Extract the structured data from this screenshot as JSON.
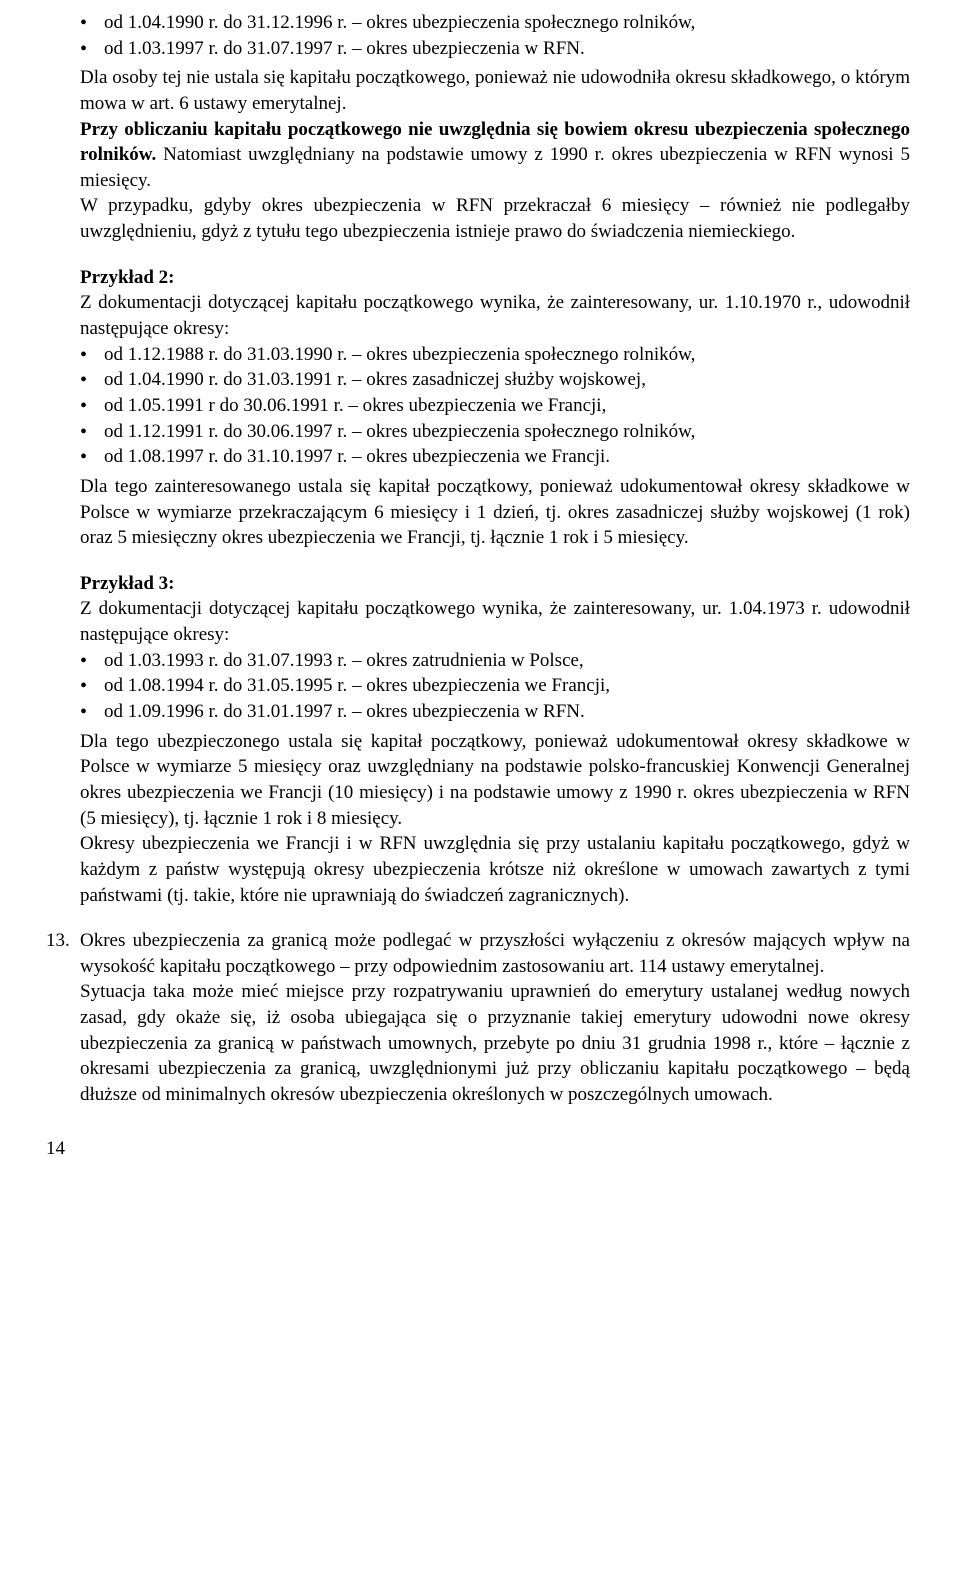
{
  "block1": {
    "bullets": [
      "od 1.04.1990 r. do 31.12.1996 r. – okres ubezpieczenia społecznego rolników,",
      "od 1.03.1997 r. do 31.07.1997 r. – okres ubezpieczenia w RFN."
    ],
    "p1": "Dla osoby tej nie ustala się kapitału początkowego, ponieważ nie udowodniła okresu składkowego, o którym mowa w art. 6 ustawy emerytalnej.",
    "p2a": "Przy obliczaniu kapitału początkowego nie uwzględnia się bowiem okresu ubezpieczenia społecznego rolników.",
    "p2b": " Natomiast uwzględniany na podstawie umowy z 1990 r. okres ubezpieczenia w RFN wynosi 5 miesięcy.",
    "p3": "W przypadku, gdyby okres ubezpieczenia w RFN przekraczał 6 miesięcy – również nie podlegałby uwzględnieniu, gdyż z tytułu tego ubezpieczenia istnieje prawo do świadczenia niemieckiego."
  },
  "block2": {
    "heading": "Przykład 2:",
    "intro": "Z dokumentacji dotyczącej kapitału początkowego wynika, że zainteresowany, ur. 1.10.1970 r., udowodnił następujące okresy:",
    "bullets": [
      "od 1.12.1988 r. do 31.03.1990 r. – okres ubezpieczenia społecznego rolników,",
      "od 1.04.1990 r. do 31.03.1991 r. – okres zasadniczej służby wojskowej,",
      "od 1.05.1991 r do 30.06.1991 r. – okres ubezpieczenia we Francji,",
      "od 1.12.1991 r. do 30.06.1997 r. – okres ubezpieczenia społecznego rolników,",
      "od 1.08.1997 r. do 31.10.1997 r. – okres ubezpieczenia we Francji."
    ],
    "p1": "Dla tego zainteresowanego ustala się kapitał początkowy, ponieważ udokumentował okresy składkowe w Polsce w wymiarze przekraczającym 6 miesięcy i 1 dzień, tj. okres zasadniczej służby wojskowej (1 rok) oraz 5 miesięczny okres ubezpieczenia we Francji, tj. łącznie 1 rok i 5 miesięcy."
  },
  "block3": {
    "heading": "Przykład 3:",
    "intro": "Z dokumentacji dotyczącej kapitału początkowego wynika, że zainteresowany, ur. 1.04.1973 r. udowodnił następujące okresy:",
    "bullets": [
      "od 1.03.1993 r. do 31.07.1993 r. – okres zatrudnienia w Polsce,",
      "od 1.08.1994 r. do 31.05.1995 r. – okres ubezpieczenia we Francji,",
      "od 1.09.1996 r. do 31.01.1997 r. – okres ubezpieczenia w RFN."
    ],
    "p1": "Dla tego ubezpieczonego ustala się kapitał początkowy, ponieważ udokumentował okresy składkowe w Polsce w wymiarze 5 miesięcy oraz uwzględniany na podstawie polsko-francuskiej Konwencji Generalnej okres ubezpieczenia we Francji (10 miesięcy) i na podstawie umowy z 1990 r. okres ubezpieczenia w RFN (5 miesięcy), tj. łącznie 1 rok i 8 miesięcy.",
    "p2": "Okresy ubezpieczenia we Francji i w RFN uwzględnia się przy ustalaniu kapitału początkowego, gdyż w każdym z państw występują okresy ubezpieczenia krótsze niż określone w umowach zawartych z tymi państwami (tj. takie, które nie uprawniają do świadczeń zagranicznych)."
  },
  "block4": {
    "number": "13.",
    "p1": "Okres ubezpieczenia za granicą może podlegać w przyszłości wyłączeniu z okresów mających wpływ na wysokość kapitału początkowego – przy odpowiednim zastosowaniu art. 114 ustawy emerytalnej.",
    "p2": "Sytuacja taka może mieć miejsce przy rozpatrywaniu uprawnień do emerytury ustalanej według nowych zasad, gdy okaże się, iż osoba ubiegająca się o przyznanie takiej emerytury udowodni nowe okresy ubezpieczenia za granicą w państwach umownych, przebyte po dniu 31 grudnia 1998 r., które – łącznie z okresami ubezpieczenia za granicą, uwzględnionymi już przy obliczaniu kapitału początkowego – będą dłuższe od minimalnych okresów ubezpieczenia określonych w poszczególnych umowach."
  },
  "pageNumber": "14"
}
